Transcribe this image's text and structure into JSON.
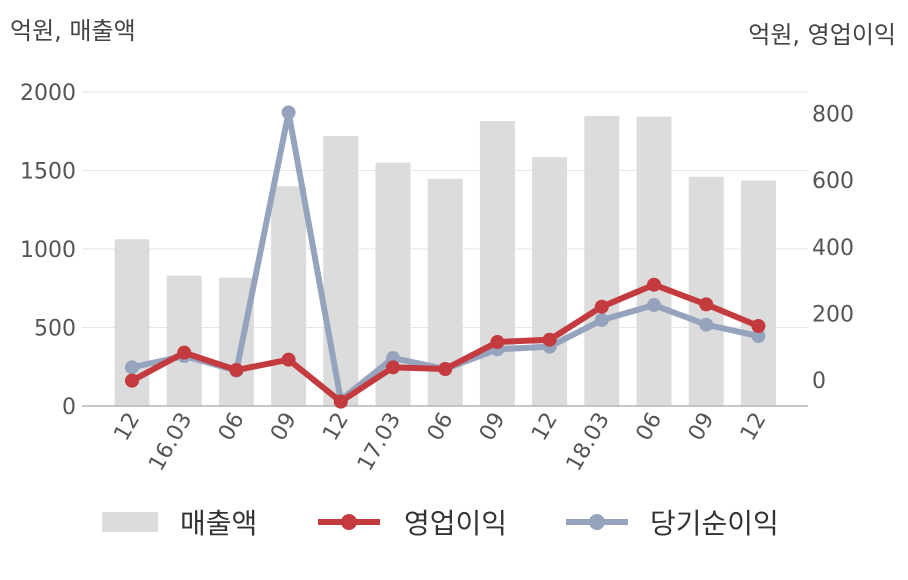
{
  "chart_data": {
    "type": "bar+line",
    "left_unit": "억원, 매출액",
    "right_unit": "억원, 영업이익",
    "categories": [
      "12",
      "16.03",
      "06",
      "09",
      "12",
      "17.03",
      "06",
      "09",
      "12",
      "18.03",
      "06",
      "09",
      "12"
    ],
    "y_left": {
      "min": 0,
      "max": 2000,
      "ticks": [
        "0",
        "500",
        "1000",
        "1500",
        "2000"
      ],
      "tick_values": [
        0,
        500,
        1000,
        1500,
        2000
      ]
    },
    "y_right": {
      "min": -80,
      "max": 870,
      "ticks": [
        "0",
        "200",
        "400",
        "600",
        "800"
      ],
      "tick_values": [
        0,
        200,
        400,
        600,
        800
      ]
    },
    "grid": true,
    "legend_position": "bottom",
    "series": [
      {
        "name": "매출액",
        "kind": "bar",
        "axis": "left",
        "color": "#dcdcdc",
        "values": [
          1062,
          830,
          818,
          1400,
          1720,
          1550,
          1447,
          1815,
          1585,
          1848,
          1843,
          1460,
          1437
        ]
      },
      {
        "name": "영업이익",
        "kind": "line",
        "axis": "right",
        "color": "#c33a3f",
        "values": [
          -2,
          82,
          30,
          61,
          -65,
          38,
          33,
          114,
          121,
          220,
          286,
          227,
          162
        ]
      },
      {
        "name": "당기순이익",
        "kind": "line",
        "axis": "right",
        "color": "#95a3bd",
        "values": [
          38,
          72,
          28,
          803,
          -60,
          66,
          33,
          92,
          100,
          180,
          225,
          166,
          132
        ]
      }
    ]
  }
}
